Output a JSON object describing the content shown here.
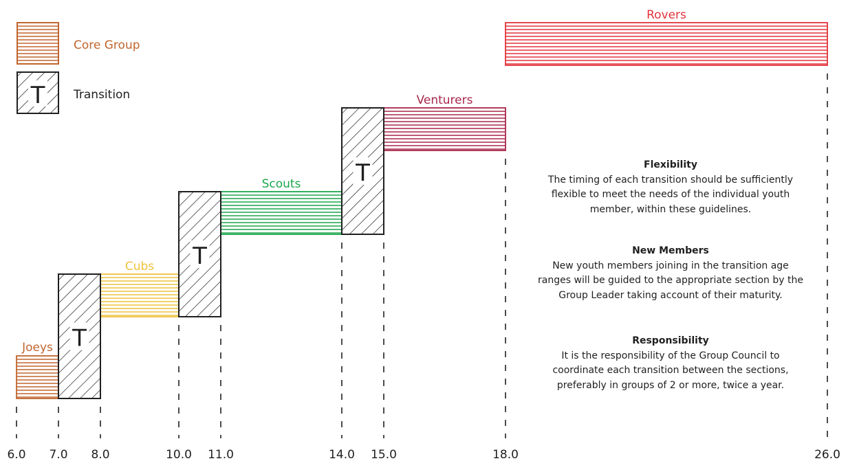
{
  "legend": {
    "core_label": "Core Group",
    "transition_label": "Transition",
    "transition_letter": "T"
  },
  "colors": {
    "joeys": "#c0652e",
    "cubs": "#efc23c",
    "scouts": "#19a64b",
    "venturers": "#a8274a",
    "rovers": "#e3323a",
    "transition": "#1f1f1f",
    "legend_core": "#c0652e",
    "dash": "#1f1f1f"
  },
  "chart_data": {
    "type": "timeline",
    "unit": "age (years)",
    "x_ticks": [
      "6.0",
      "7.0",
      "8.0",
      "10.0",
      "11.0",
      "14.0",
      "15.0",
      "18.0",
      "26.0"
    ],
    "sections": [
      {
        "id": "joeys",
        "name": "Joeys",
        "start": 6.0,
        "end": 7.0,
        "step": 1
      },
      {
        "id": "cubs",
        "name": "Cubs",
        "start": 8.0,
        "end": 10.0,
        "step": 2
      },
      {
        "id": "scouts",
        "name": "Scouts",
        "start": 11.0,
        "end": 14.0,
        "step": 3
      },
      {
        "id": "venturers",
        "name": "Venturers",
        "start": 15.0,
        "end": 18.0,
        "step": 4
      },
      {
        "id": "rovers",
        "name": "Rovers",
        "start": 18.0,
        "end": 26.0,
        "step": 5
      }
    ],
    "transitions": [
      {
        "from": "Joeys",
        "to": "Cubs",
        "start": 7.0,
        "end": 8.0
      },
      {
        "from": "Cubs",
        "to": "Scouts",
        "start": 10.0,
        "end": 11.0
      },
      {
        "from": "Scouts",
        "to": "Venturers",
        "start": 14.0,
        "end": 15.0
      }
    ]
  },
  "notes": [
    {
      "title": "Flexibility",
      "lines": [
        "The timing of each transition should be sufficiently",
        "flexible to meet the needs of the individual youth",
        "member, within these guidelines."
      ]
    },
    {
      "title": "New Members",
      "lines": [
        "New youth members joining in the transition age",
        "ranges will be guided to the appropriate section by the",
        "Group Leader taking account of their maturity."
      ]
    },
    {
      "title": "Responsibility",
      "lines": [
        "It is the responsibility of the Group Council to",
        "coordinate each transition between the sections,",
        "preferably in groups of 2 or more, twice a year."
      ]
    }
  ]
}
